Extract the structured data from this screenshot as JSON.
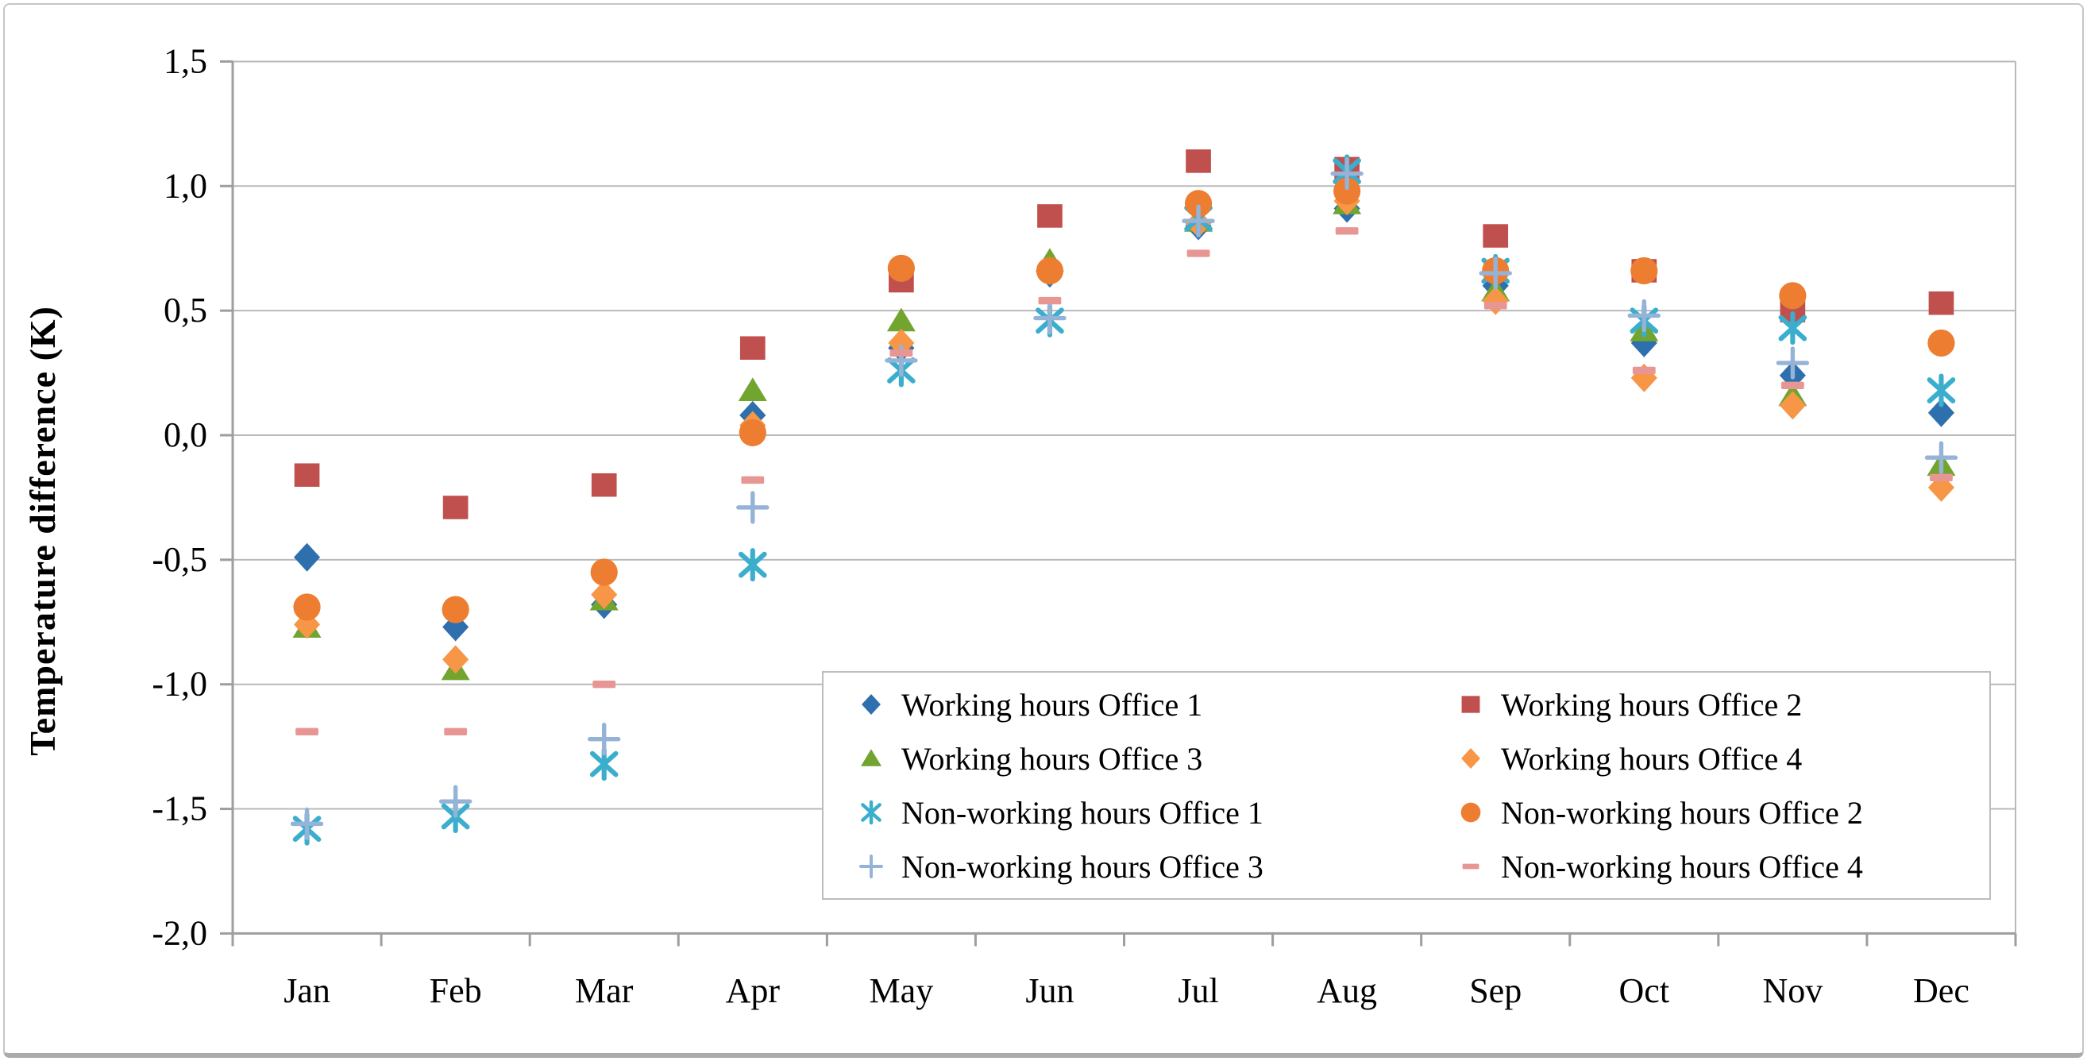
{
  "chart_data": {
    "type": "scatter",
    "title": "",
    "xlabel": "",
    "ylabel": "Temperature difference (K)",
    "categories": [
      "Jan",
      "Feb",
      "Mar",
      "Apr",
      "May",
      "Jun",
      "Jul",
      "Aug",
      "Sep",
      "Oct",
      "Nov",
      "Dec"
    ],
    "y_axis": {
      "min": -2.0,
      "max": 1.5,
      "step": 0.5,
      "tick_labels": [
        "1,5",
        "1,0",
        "0,5",
        "0,0",
        "-0,5",
        "-1,0",
        "-1,5",
        "-2,0"
      ],
      "decimal_separator": ","
    },
    "grid": true,
    "legend_position": "inside-bottom-right",
    "legend_columns": 2,
    "series": [
      {
        "name": "Working hours Office 1",
        "marker": "diamond",
        "color": "#2E6FAD",
        "values": [
          -0.49,
          -0.77,
          -0.68,
          0.08,
          0.35,
          0.65,
          0.84,
          0.91,
          0.6,
          0.37,
          0.24,
          0.09
        ]
      },
      {
        "name": "Working hours Office 2",
        "marker": "square",
        "color": "#C0504D",
        "values": [
          -0.16,
          -0.29,
          -0.2,
          0.35,
          0.62,
          0.88,
          1.1,
          1.07,
          0.8,
          0.66,
          0.5,
          0.53
        ]
      },
      {
        "name": "Working hours Office 3",
        "marker": "triangle",
        "color": "#71A52F",
        "values": [
          -0.77,
          -0.94,
          -0.66,
          0.18,
          0.46,
          0.7,
          0.86,
          0.93,
          0.58,
          0.42,
          0.16,
          -0.12
        ]
      },
      {
        "name": "Working hours Office 4",
        "marker": "diamond",
        "color": "#F79646",
        "values": [
          -0.76,
          -0.9,
          -0.64,
          0.04,
          0.37,
          0.66,
          0.85,
          0.94,
          0.54,
          0.23,
          0.12,
          -0.21
        ]
      },
      {
        "name": "Non-working hours Office 1",
        "marker": "asterisk",
        "color": "#3AAECC",
        "values": [
          -1.58,
          -1.53,
          -1.32,
          -0.52,
          0.26,
          0.46,
          0.87,
          1.06,
          0.66,
          0.46,
          0.43,
          0.18
        ]
      },
      {
        "name": "Non-working hours Office 2",
        "marker": "circle",
        "color": "#ED7D31",
        "values": [
          -0.69,
          -0.7,
          -0.55,
          0.01,
          0.67,
          0.66,
          0.93,
          0.98,
          0.66,
          0.66,
          0.56,
          0.37
        ]
      },
      {
        "name": "Non-working hours Office 3",
        "marker": "plus",
        "color": "#95B3D7",
        "values": [
          -1.56,
          -1.47,
          -1.22,
          -0.29,
          0.3,
          0.47,
          0.86,
          1.05,
          0.65,
          0.48,
          0.29,
          -0.09
        ]
      },
      {
        "name": "Non-working hours Office 4",
        "marker": "dash",
        "color": "#E89694",
        "values": [
          -1.19,
          -1.19,
          -1.0,
          -0.18,
          0.33,
          0.54,
          0.73,
          0.82,
          0.52,
          0.26,
          0.2,
          -0.17
        ]
      }
    ]
  },
  "style": {
    "gridline_color": "#b9b9b9",
    "axis_color": "#9e9e9e",
    "text_color": "#000000",
    "background": "#ffffff"
  }
}
